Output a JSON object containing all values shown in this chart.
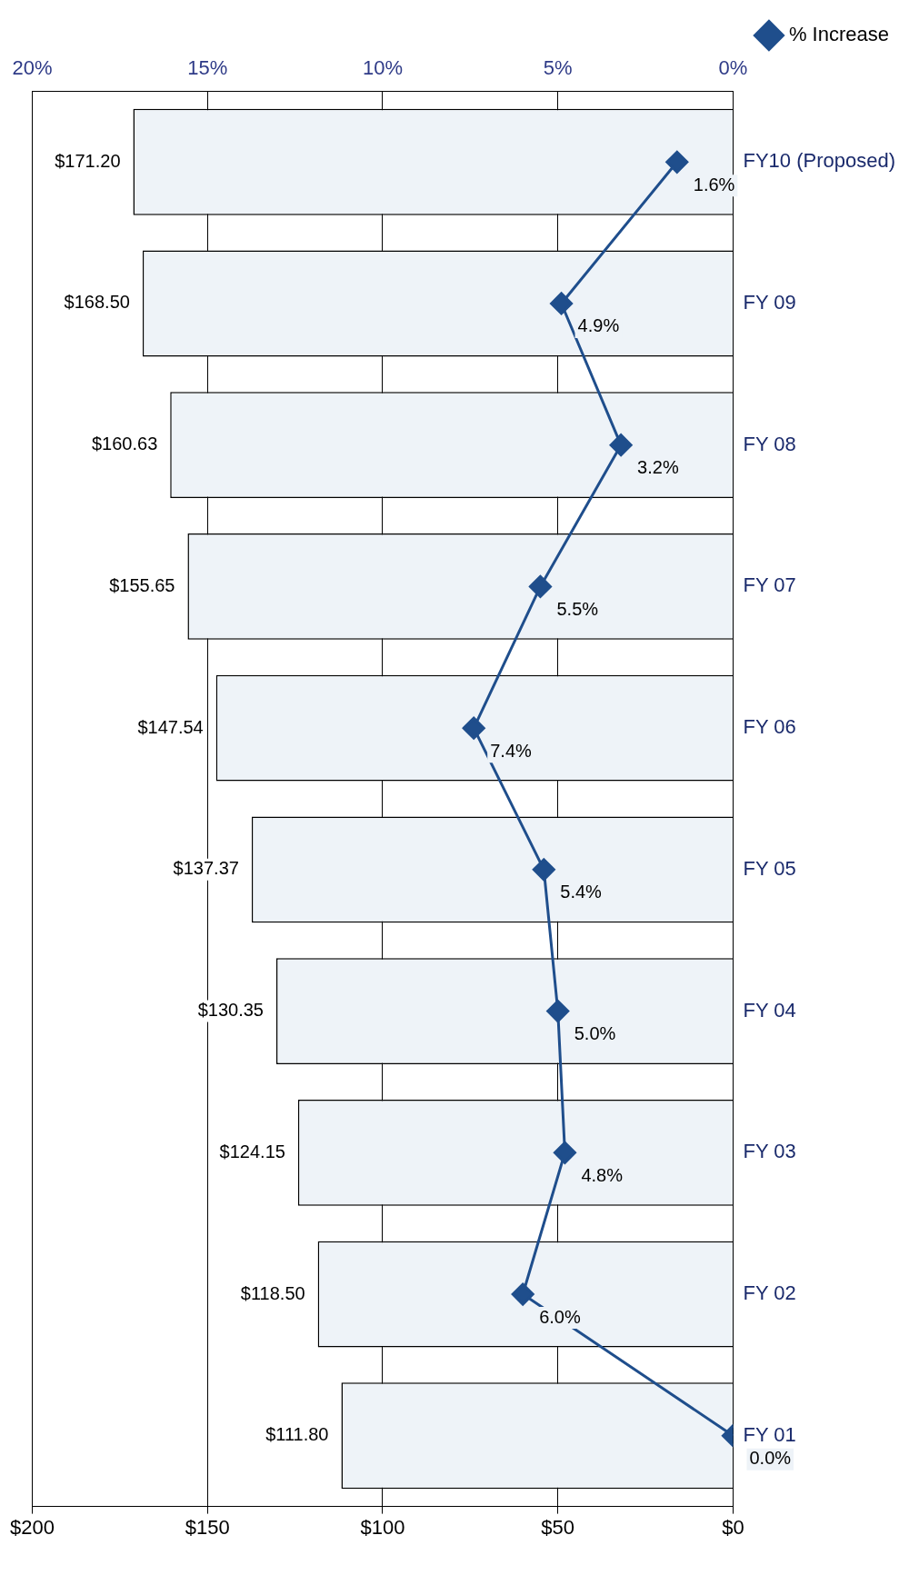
{
  "chart_data": {
    "type": "bar",
    "orientation": "horizontal",
    "categories": [
      "FY10 (Proposed)",
      "FY 09",
      "FY 08",
      "FY 07",
      "FY 06",
      "FY 05",
      "FY 04",
      "FY 03",
      "FY 02",
      "FY 01"
    ],
    "series": [
      {
        "color": "#eef3f8",
        "values": [
          171.2,
          168.5,
          160.63,
          155.65,
          147.54,
          137.37,
          130.35,
          124.15,
          118.5,
          111.8
        ],
        "value_labels": [
          "$171.20",
          "$168.50",
          "$160.63",
          "$155.65",
          "$147.54",
          "$137.37",
          "$130.35",
          "$124.15",
          "$118.50",
          "$111.80"
        ]
      },
      {
        "type": "line",
        "name": "% Increase",
        "axis": "x2",
        "color": "#1f4e8c",
        "marker": "diamond",
        "line_style": "solid",
        "values": [
          1.6,
          4.9,
          3.2,
          5.5,
          7.4,
          5.4,
          5.0,
          4.8,
          6.0,
          0.0
        ],
        "value_labels": [
          "1.6%",
          "4.9%",
          "3.2%",
          "5.5%",
          "7.4%",
          "5.4%",
          "5.0%",
          "4.8%",
          "6.0%",
          "0.0%"
        ]
      }
    ],
    "xlim": [
      200,
      0
    ],
    "xticks": [
      {
        "value": 200,
        "label": "$200"
      },
      {
        "value": 150,
        "label": "$150"
      },
      {
        "value": 100,
        "label": "$100"
      },
      {
        "value": 50,
        "label": "$50"
      },
      {
        "value": 0,
        "label": "$0"
      }
    ],
    "x2lim": [
      20,
      0
    ],
    "x2ticks": [
      {
        "value": 20,
        "label": "20%"
      },
      {
        "value": 15,
        "label": "15%"
      },
      {
        "value": 10,
        "label": "10%"
      },
      {
        "value": 5,
        "label": "5%"
      },
      {
        "value": 0,
        "label": "0%"
      }
    ],
    "grid": "x",
    "legend": "top right"
  }
}
